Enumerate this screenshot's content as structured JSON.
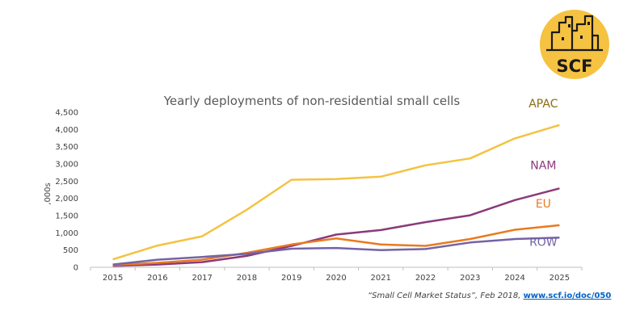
{
  "colors": {
    "APAC": "#f5c242",
    "NAM": "#8b3a7a",
    "EU": "#e97a1f",
    "ROW": "#7463a6",
    "logo": "#f5c242",
    "axis": "#bfbfbf"
  },
  "logo": {
    "text": "SCF"
  },
  "source": {
    "citation": "“Small Cell Market Status”, Feb 2018,",
    "link": "www.scf.io/doc/050"
  },
  "chart_data": {
    "type": "line",
    "title": "Yearly deployments of non-residential small cells",
    "xlabel": "",
    "ylabel": ",000s",
    "x": [
      "2015",
      "2016",
      "2017",
      "2018",
      "2019",
      "2020",
      "2021",
      "2022",
      "2023",
      "2024",
      "2025"
    ],
    "ylim": [
      0,
      4500
    ],
    "yticks": [
      0,
      500,
      1000,
      1500,
      2000,
      2500,
      3000,
      3500,
      4000,
      4500
    ],
    "ytick_labels": [
      "0",
      "500",
      "1,000",
      "1,500",
      "2,000",
      "2,500",
      "3,000",
      "3,500",
      "4,000",
      "4,500"
    ],
    "grid": false,
    "legend": "inline-right",
    "series": [
      {
        "name": "APAC",
        "values": [
          230,
          630,
          900,
          1670,
          2540,
          2560,
          2630,
          2960,
          3160,
          3740,
          4130
        ]
      },
      {
        "name": "NAM",
        "values": [
          40,
          80,
          150,
          330,
          620,
          950,
          1080,
          1310,
          1510,
          1950,
          2290
        ]
      },
      {
        "name": "EU",
        "values": [
          60,
          130,
          220,
          420,
          660,
          840,
          660,
          620,
          820,
          1090,
          1220
        ]
      },
      {
        "name": "ROW",
        "values": [
          80,
          220,
          300,
          390,
          540,
          560,
          500,
          530,
          720,
          820,
          860
        ]
      }
    ]
  }
}
